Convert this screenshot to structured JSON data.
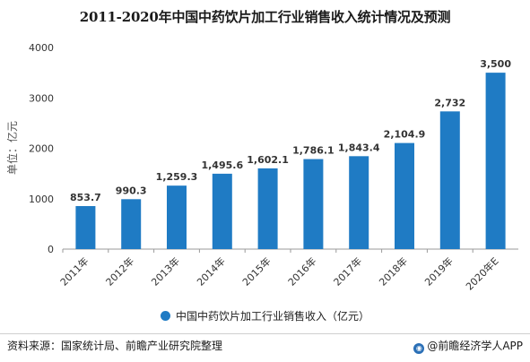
{
  "title": "2011-2020年中国中药饮片加工行业销售收入统计情况及预测",
  "source": "资料来源：国家统计局、前瞻产业研究院整理",
  "brand": "@前瞻经济学人APP",
  "colors": {
    "bar": "#1f7bc4",
    "axis": "#7f7f7f",
    "text": "#333333"
  },
  "chart_data": {
    "type": "bar",
    "title": "2011-2020年中国中药饮片加工行业销售收入统计情况及预测",
    "ylabel": "单位：亿元",
    "xlabel": "",
    "categories": [
      "2011年",
      "2012年",
      "2013年",
      "2014年",
      "2015年",
      "2016年",
      "2017年",
      "2018年",
      "2019年",
      "2020年E"
    ],
    "series": [
      {
        "name": "中国中药饮片加工行业销售收入（亿元）",
        "values": [
          853.7,
          990.3,
          1259.3,
          1495.6,
          1602.1,
          1786.1,
          1843.4,
          2104.9,
          2732,
          3500
        ],
        "labels": [
          "853.7",
          "990.3",
          "1,259.3",
          "1,495.6",
          "1,602.1",
          "1,786.1",
          "1,843.4",
          "2,104.9",
          "2,732",
          "3,500"
        ]
      }
    ],
    "ylim": [
      0,
      4000
    ],
    "yticks": [
      "0",
      "1000",
      "2000",
      "3000",
      "4000"
    ],
    "grid": false,
    "legend": "bottom"
  }
}
